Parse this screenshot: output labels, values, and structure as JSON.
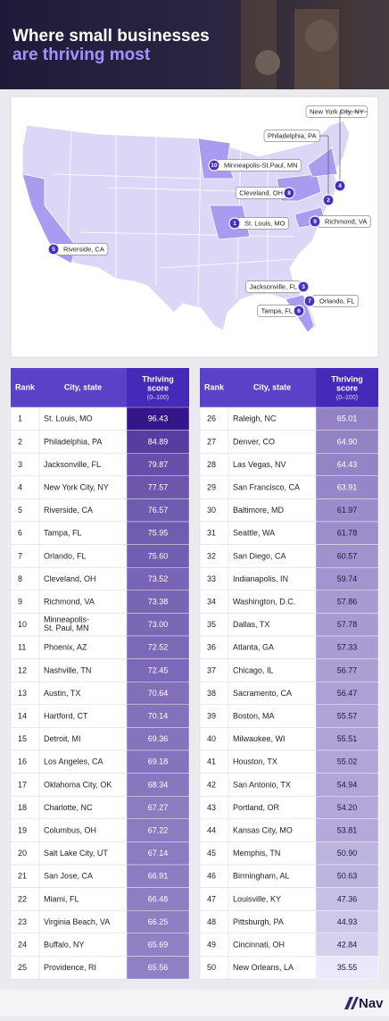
{
  "header": {
    "title_line1": "Where small businesses",
    "title_line2": "are thriving most"
  },
  "map": {
    "pins": [
      {
        "rank": 1,
        "label": "St. Louis, MO"
      },
      {
        "rank": 2,
        "label": "Philadelphia, PA"
      },
      {
        "rank": 3,
        "label": "Jacksonville, FL"
      },
      {
        "rank": 4,
        "label": "New York City, NY"
      },
      {
        "rank": 5,
        "label": "Riverside, CA"
      },
      {
        "rank": 6,
        "label": "Tampa, FL"
      },
      {
        "rank": 7,
        "label": "Orlando, FL"
      },
      {
        "rank": 8,
        "label": "Cleveland, OH"
      },
      {
        "rank": 9,
        "label": "Richmond, VA"
      },
      {
        "rank": 10,
        "label": "Minneapolis-St.Paul, MN"
      }
    ]
  },
  "table": {
    "header": {
      "rank": "Rank",
      "city": "City, state",
      "score_line1": "Thriving",
      "score_line2": "score",
      "score_unit": "(0–100)"
    },
    "left": [
      [
        1,
        "St. Louis, MO",
        "96.43"
      ],
      [
        2,
        "Philadelphia, PA",
        "84.89"
      ],
      [
        3,
        "Jacksonville, FL",
        "79.87"
      ],
      [
        4,
        "New York City, NY",
        "77.57"
      ],
      [
        5,
        "Riverside, CA",
        "76.57"
      ],
      [
        6,
        "Tampa, FL",
        "75.95"
      ],
      [
        7,
        "Orlando, FL",
        "75.60"
      ],
      [
        8,
        "Cleveland, OH",
        "73.52"
      ],
      [
        9,
        "Richmond, VA",
        "73.38"
      ],
      [
        10,
        "Minneapolis-St. Paul, MN",
        "73.00"
      ],
      [
        11,
        "Phoenix, AZ",
        "72.52"
      ],
      [
        12,
        "Nashville, TN",
        "72.45"
      ],
      [
        13,
        "Austin, TX",
        "70.64"
      ],
      [
        14,
        "Hartford, CT",
        "70.14"
      ],
      [
        15,
        "Detroit, MI",
        "69.36"
      ],
      [
        16,
        "Los Angeles, CA",
        "69.18"
      ],
      [
        17,
        "Oklahoma City, OK",
        "68.34"
      ],
      [
        18,
        "Charlotte, NC",
        "67.27"
      ],
      [
        19,
        "Columbus, OH",
        "67.22"
      ],
      [
        20,
        "Salt Lake City, UT",
        "67.14"
      ],
      [
        21,
        "San Jose, CA",
        "66.91"
      ],
      [
        22,
        "Miami, FL",
        "66.48"
      ],
      [
        23,
        "Virginia Beach, VA",
        "66.25"
      ],
      [
        24,
        "Buffalo, NY",
        "65.69"
      ],
      [
        25,
        "Providence, RI",
        "65.56"
      ]
    ],
    "right": [
      [
        26,
        "Raleigh, NC",
        "65.01"
      ],
      [
        27,
        "Denver, CO",
        "64.90"
      ],
      [
        28,
        "Las Vegas, NV",
        "64.43"
      ],
      [
        29,
        "San Francisco, CA",
        "63.91"
      ],
      [
        30,
        "Baltimore, MD",
        "61.97"
      ],
      [
        31,
        "Seattle, WA",
        "61.78"
      ],
      [
        32,
        "San Diego, CA",
        "60.57"
      ],
      [
        33,
        "Indianapolis, IN",
        "59.74"
      ],
      [
        34,
        "Washington, D.C.",
        "57.86"
      ],
      [
        35,
        "Dallas, TX",
        "57.78"
      ],
      [
        36,
        "Atlanta, GA",
        "57.33"
      ],
      [
        37,
        "Chicago, IL",
        "56.77"
      ],
      [
        38,
        "Sacramento, CA",
        "56.47"
      ],
      [
        39,
        "Boston, MA",
        "55.57"
      ],
      [
        40,
        "Milwaukee, WI",
        "55.51"
      ],
      [
        41,
        "Houston, TX",
        "55.02"
      ],
      [
        42,
        "San Antonio, TX",
        "54.94"
      ],
      [
        43,
        "Portland, OR",
        "54.20"
      ],
      [
        44,
        "Kansas City, MO",
        "53.81"
      ],
      [
        45,
        "Memphis, TN",
        "50.90"
      ],
      [
        46,
        "Birmingham, AL",
        "50.63"
      ],
      [
        47,
        "Louisville, KY",
        "47.36"
      ],
      [
        48,
        "Pittsburgh, PA",
        "44.93"
      ],
      [
        49,
        "Cincinnati, OH",
        "42.84"
      ],
      [
        50,
        "New Orleans, LA",
        "35.55"
      ]
    ]
  },
  "footer": {
    "logo": "Nav"
  }
}
